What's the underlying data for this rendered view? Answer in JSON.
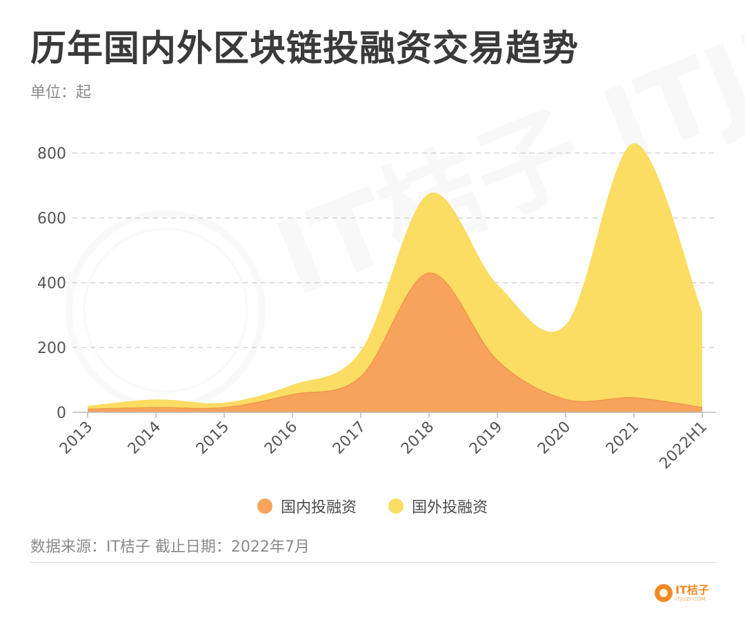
{
  "title": "历年国内外区块链投融资交易趋势",
  "unit_label": "单位：起",
  "source_note": "数据来源：IT桔子 截止日期：2022年7月",
  "watermark": "IT桔子 ITJUZI.COM",
  "logo": {
    "brand": "IT桔子",
    "sub": "ITJUZI.COM"
  },
  "colors": {
    "domestic": "#f7a35c",
    "foreign": "#fbdd64",
    "grid": "#cccccc",
    "axis": "#bbbbbb"
  },
  "chart_data": {
    "type": "area",
    "stacked": true,
    "categories": [
      "2013",
      "2014",
      "2015",
      "2016",
      "2017",
      "2018",
      "2019",
      "2020",
      "2021",
      "2022H1"
    ],
    "series": [
      {
        "name": "国内投融资",
        "values": [
          10,
          15,
          15,
          55,
          110,
          430,
          160,
          40,
          45,
          15
        ]
      },
      {
        "name": "国外投融资",
        "values": [
          10,
          25,
          15,
          30,
          80,
          245,
          235,
          230,
          785,
          295
        ]
      }
    ],
    "y_ticks": [
      0,
      200,
      400,
      600,
      800
    ],
    "ylim": [
      0,
      850
    ],
    "grid": true,
    "legend_position": "bottom-center"
  }
}
